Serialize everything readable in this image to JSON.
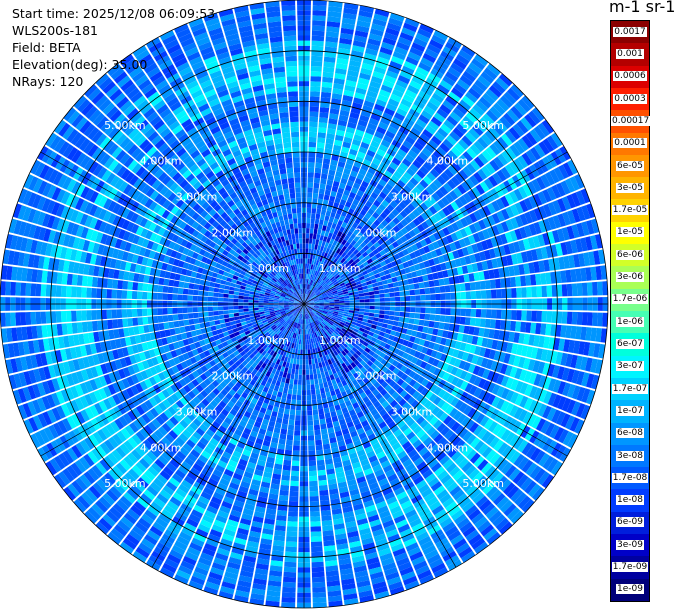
{
  "info": {
    "start_time": "Start time: 2025/12/08 06:09:53",
    "instrument": "WLS200s-181",
    "field": "Field: BETA",
    "elevation": "Elevation(deg): 35.00",
    "nrays": "NRays: 120"
  },
  "colorbar": {
    "unit_label": "m-1 sr-1",
    "labels": [
      "0.0017",
      "0.001",
      "0.0006",
      "0.0003",
      "0.00017",
      "0.0001",
      "6e-05",
      "3e-05",
      "1.7e-05",
      "1e-05",
      "6e-06",
      "3e-06",
      "1.7e-06",
      "1e-06",
      "6e-07",
      "3e-07",
      "1.7e-07",
      "1e-07",
      "6e-08",
      "3e-08",
      "1.7e-08",
      "1e-08",
      "6e-09",
      "3e-09",
      "1.7e-09",
      "1e-09"
    ],
    "colors": [
      "#8b0000",
      "#b40000",
      "#dc0000",
      "#ff1e00",
      "#ff5000",
      "#ff7800",
      "#ff9600",
      "#ffb400",
      "#ffd200",
      "#ffff00",
      "#d2ff28",
      "#aaff55",
      "#78ff8c",
      "#46ffb4",
      "#00ffdc",
      "#00f5ff",
      "#00d2ff",
      "#00b4ff",
      "#0096ff",
      "#0078ff",
      "#005aff",
      "#003cff",
      "#001edc",
      "#0000c8",
      "#0000a0",
      "#00007a"
    ]
  },
  "chart_data": {
    "type": "heatmap",
    "projection": "polar (PPI)",
    "field": "BETA",
    "elevation_deg": 35.0,
    "n_rays": 120,
    "range_rings_km": [
      1,
      2,
      3,
      4,
      5
    ],
    "ring_labels": [
      "1.00km",
      "2.00km",
      "3.00km",
      "4.00km",
      "5.00km"
    ],
    "max_range_km": 6,
    "color_scale": "log",
    "value_range": [
      1e-09,
      0.0017
    ],
    "background_beta": 3e-08,
    "aerosol_bands": [
      {
        "range_km": [
          4.2,
          5.2
        ],
        "beta": 1.7e-07
      },
      {
        "range_km": [
          3.0,
          3.6
        ],
        "beta": 1.7e-07
      }
    ],
    "grid": true
  }
}
